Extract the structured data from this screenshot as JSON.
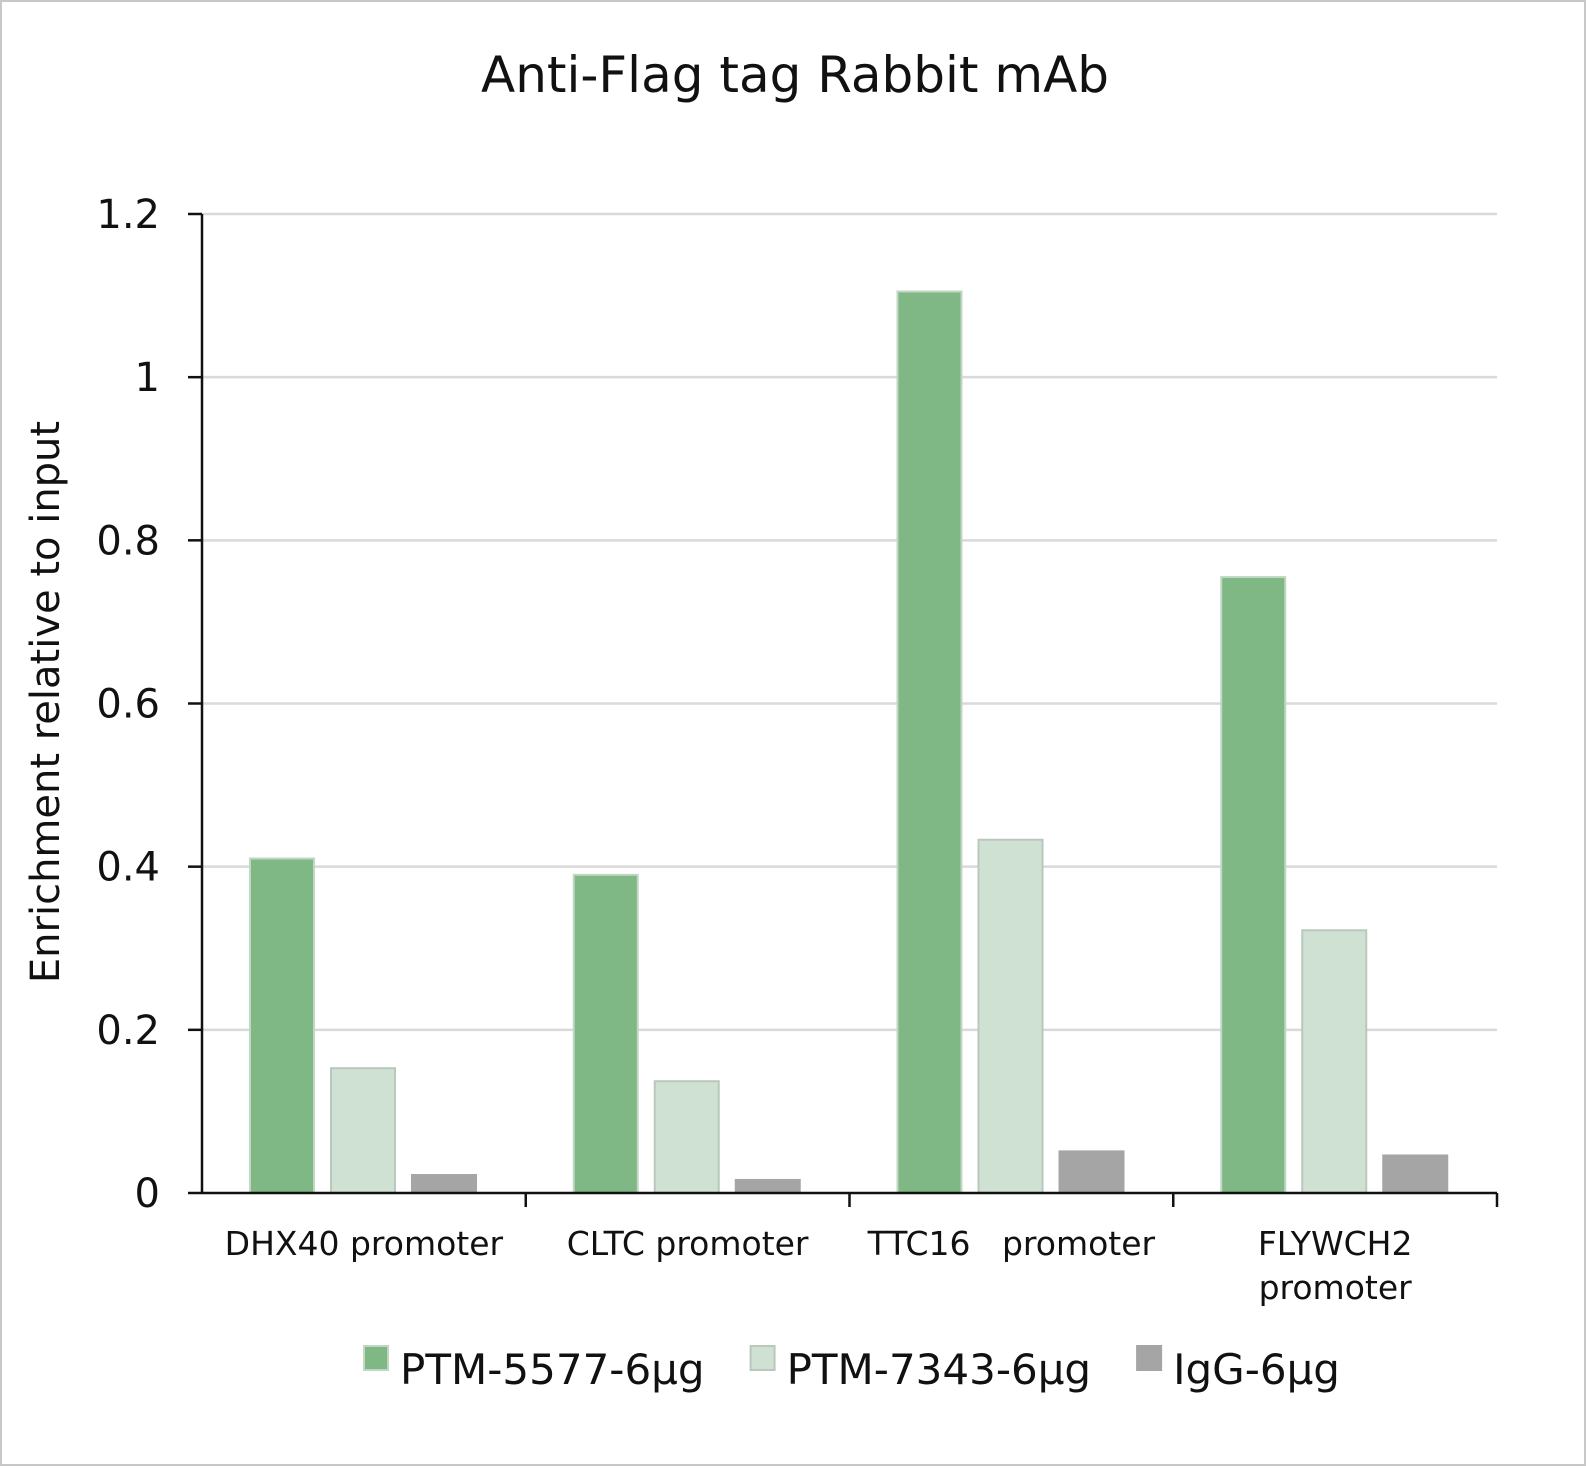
{
  "chart_data": {
    "type": "bar",
    "title": "Anti-Flag tag Rabbit mAb",
    "ylabel": "Enrichment relative to input",
    "xlabel": "",
    "ylim": [
      0,
      1.2
    ],
    "yticks": [
      "0",
      "0.2",
      "0.4",
      "0.6",
      "0.8",
      "1",
      "1.2"
    ],
    "grid": true,
    "legend_position": "bottom",
    "categories": [
      [
        "DHX40 promoter"
      ],
      [
        "CLTC promoter"
      ],
      [
        "TTC16   promoter"
      ],
      [
        "FLYWCH2",
        "promoter"
      ]
    ],
    "series": [
      {
        "name": "PTM-5577-6μg",
        "color": "#7fb785",
        "edge": "#c2d6c4",
        "values": [
          0.41,
          0.39,
          1.105,
          0.755
        ]
      },
      {
        "name": "PTM-7343-6μg",
        "color": "#cfe1d3",
        "edge": "#b9c7bc",
        "values": [
          0.153,
          0.137,
          0.433,
          0.322
        ]
      },
      {
        "name": "IgG-6μg",
        "color": "#a5a5a5",
        "edge": "#a5a5a5",
        "values": [
          0.022,
          0.016,
          0.051,
          0.046
        ]
      }
    ]
  }
}
